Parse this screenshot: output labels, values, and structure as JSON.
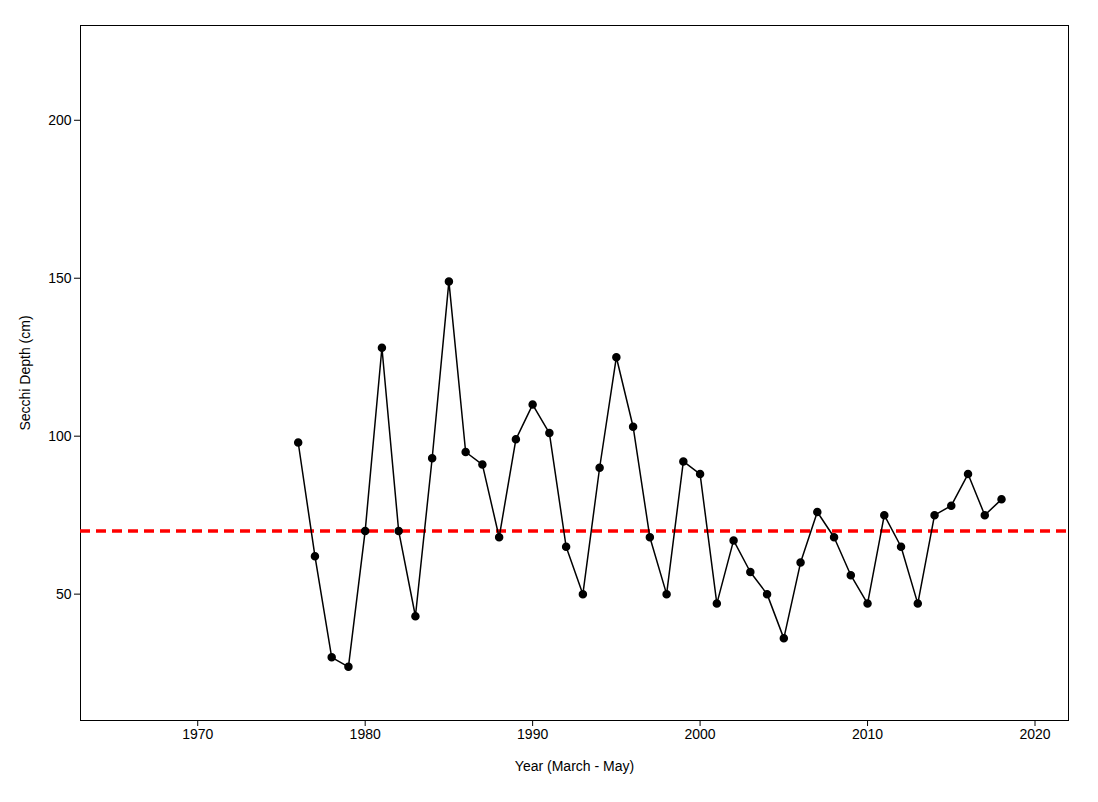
{
  "chart_data": {
    "type": "line",
    "x": [
      1976,
      1977,
      1978,
      1979,
      1980,
      1981,
      1982,
      1983,
      1984,
      1985,
      1986,
      1987,
      1988,
      1989,
      1990,
      1991,
      1992,
      1993,
      1994,
      1995,
      1996,
      1997,
      1998,
      1999,
      2000,
      2001,
      2002,
      2003,
      2004,
      2005,
      2006,
      2007,
      2008,
      2009,
      2010,
      2011,
      2012,
      2013,
      2014,
      2015,
      2016,
      2017,
      2018
    ],
    "values": [
      98,
      62,
      30,
      27,
      70,
      128,
      70,
      43,
      93,
      149,
      95,
      91,
      68,
      99,
      110,
      101,
      65,
      50,
      90,
      125,
      103,
      68,
      50,
      92,
      88,
      47,
      67,
      57,
      50,
      36,
      60,
      76,
      68,
      56,
      47,
      75,
      65,
      47,
      75,
      78,
      88,
      75,
      80
    ],
    "color": "#000000",
    "marker": "circle",
    "xlabel": "Year (March - May)",
    "ylabel": "Secchi Depth (cm)",
    "xlim": [
      1963,
      2022
    ],
    "ylim": [
      10,
      230
    ],
    "xticks": [
      1970,
      1980,
      1990,
      2000,
      2010,
      2020
    ],
    "yticks": [
      50,
      100,
      150,
      200
    ],
    "grid": false,
    "reference_lines": [
      {
        "y": 70,
        "color": "#FF0000",
        "line_style": "dashed"
      }
    ]
  }
}
